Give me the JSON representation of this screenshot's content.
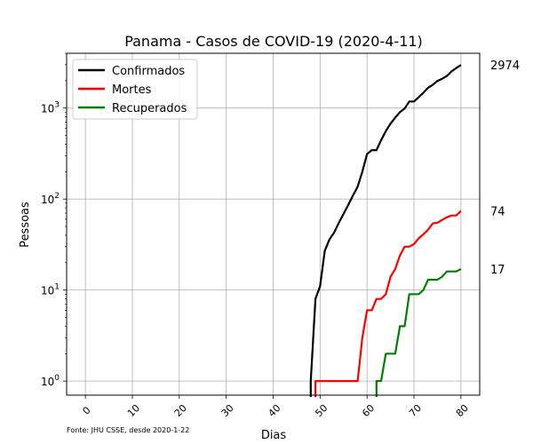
{
  "chart_data": {
    "type": "line",
    "title": "Panama - Casos de COVID-19 (2020-4-11)",
    "xlabel": "Dias",
    "ylabel": "Pessoas",
    "source_note": "Fonte: JHU CSSE, desde 2020-1-22",
    "xlim": [
      -4,
      84
    ],
    "ylim": [
      0.7,
      4000
    ],
    "yscale": "log",
    "x_ticks": [
      0,
      10,
      20,
      30,
      40,
      50,
      60,
      70,
      80
    ],
    "y_ticks": [
      {
        "value": 1,
        "label_base": "10",
        "label_exp": "0"
      },
      {
        "value": 10,
        "label_base": "10",
        "label_exp": "1"
      },
      {
        "value": 100,
        "label_base": "10",
        "label_exp": "2"
      },
      {
        "value": 1000,
        "label_base": "10",
        "label_exp": "3"
      }
    ],
    "grid": true,
    "legend_position": "top-left",
    "series": [
      {
        "name": "Confirmados",
        "color": "#000000",
        "final_label": "2974",
        "x": [
          48,
          49,
          50,
          51,
          52,
          53,
          54,
          55,
          56,
          57,
          58,
          59,
          60,
          61,
          62,
          63,
          64,
          65,
          66,
          67,
          68,
          69,
          70,
          71,
          72,
          73,
          74,
          75,
          76,
          77,
          78,
          79,
          80
        ],
        "y": [
          1,
          8,
          11,
          27,
          36,
          43,
          55,
          69,
          86,
          109,
          137,
          200,
          313,
          345,
          345,
          443,
          558,
          674,
          786,
          901,
          989,
          1181,
          1181,
          1317,
          1475,
          1673,
          1801,
          1988,
          2100,
          2249,
          2528,
          2752,
          2974
        ]
      },
      {
        "name": "Mortes",
        "color": "#ff0000",
        "final_label": "74",
        "x": [
          49,
          50,
          51,
          52,
          53,
          54,
          55,
          56,
          57,
          58,
          59,
          60,
          61,
          62,
          63,
          64,
          65,
          66,
          67,
          68,
          69,
          70,
          71,
          72,
          73,
          74,
          75,
          76,
          77,
          78,
          79,
          80
        ],
        "y": [
          1,
          1,
          1,
          1,
          1,
          1,
          1,
          1,
          1,
          1,
          3,
          6,
          6,
          8,
          8,
          9,
          14,
          17,
          24,
          30,
          30,
          32,
          37,
          41,
          46,
          54,
          55,
          59,
          63,
          66,
          66,
          74
        ]
      },
      {
        "name": "Recuperados",
        "color": "#008000",
        "final_label": "17",
        "x": [
          62,
          63,
          64,
          65,
          66,
          67,
          68,
          69,
          70,
          71,
          72,
          73,
          74,
          75,
          76,
          77,
          78,
          79,
          80
        ],
        "y": [
          1,
          1,
          2,
          2,
          2,
          4,
          4,
          9,
          9,
          9,
          10,
          13,
          13,
          13,
          14,
          16,
          16,
          16,
          17
        ]
      }
    ]
  }
}
